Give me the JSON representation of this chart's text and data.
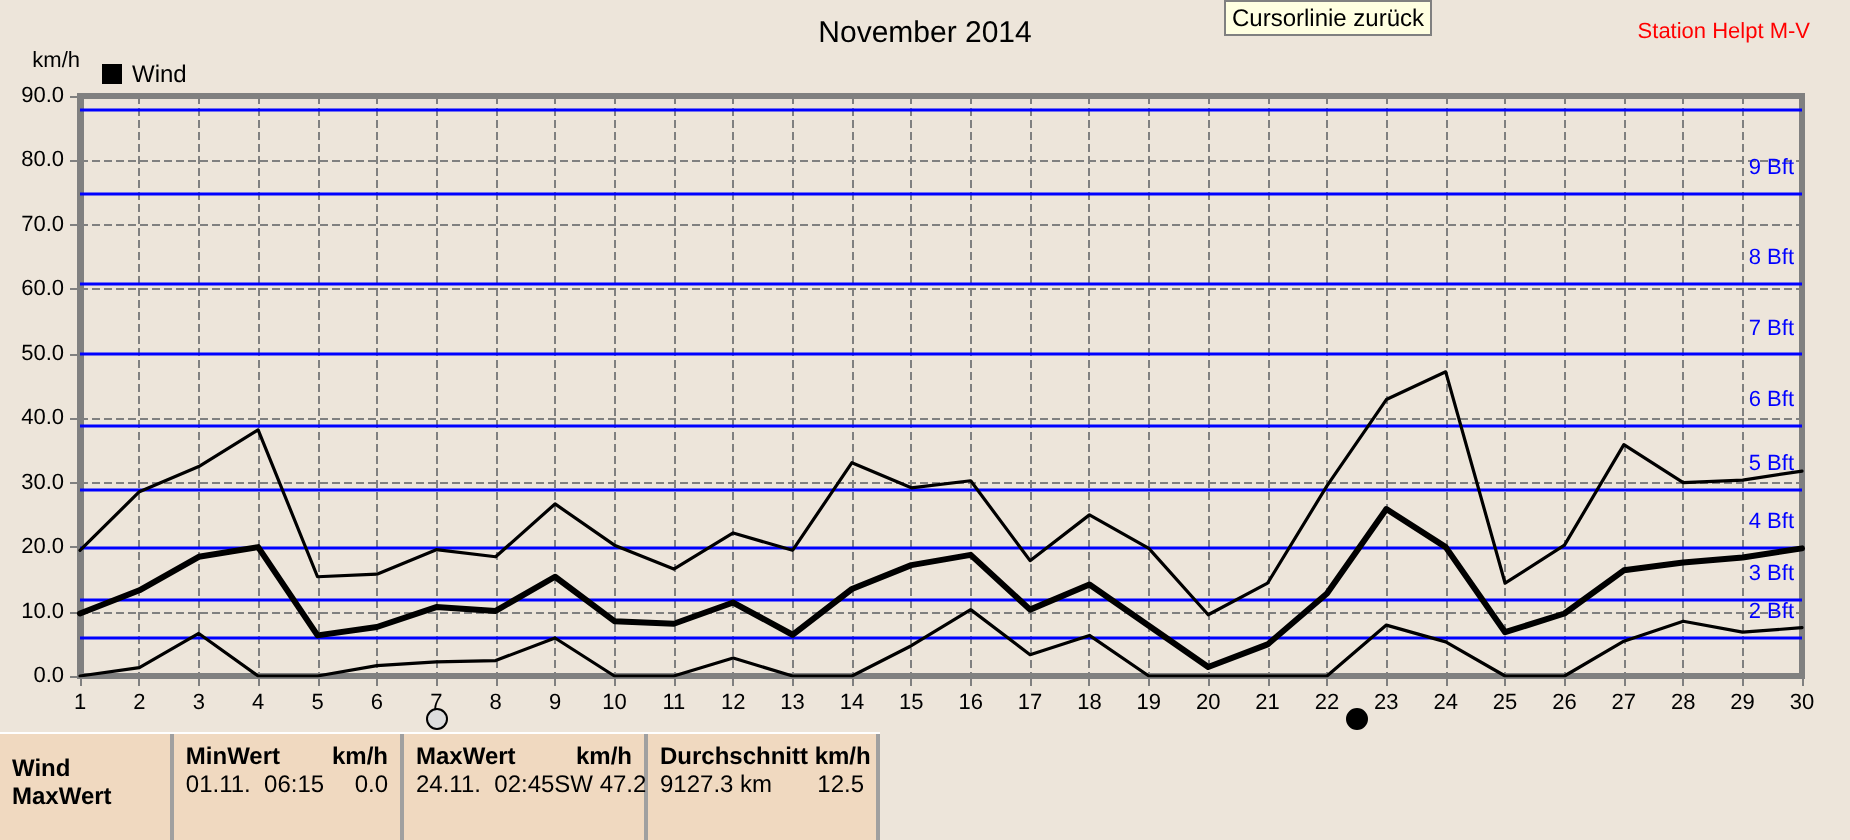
{
  "chart_data": {
    "type": "line",
    "title": "November 2014",
    "ylabel": "km/h",
    "legend": "top left",
    "grid": true,
    "marker": "none",
    "line_style": "solid",
    "x": [
      1,
      2,
      3,
      4,
      5,
      6,
      7,
      8,
      9,
      10,
      11,
      12,
      13,
      14,
      15,
      16,
      17,
      18,
      19,
      20,
      21,
      22,
      23,
      24,
      25,
      26,
      27,
      28,
      29,
      30
    ],
    "xlim": [
      1,
      30
    ],
    "xticks": [
      1,
      2,
      3,
      4,
      5,
      6,
      7,
      8,
      9,
      10,
      11,
      12,
      13,
      14,
      15,
      16,
      17,
      18,
      19,
      20,
      21,
      22,
      23,
      24,
      25,
      26,
      27,
      28,
      29,
      30
    ],
    "ylim": [
      0,
      90
    ],
    "yticks": [
      {
        "value": 0,
        "label": "0.0"
      },
      {
        "value": 10,
        "label": "10.0"
      },
      {
        "value": 20,
        "label": "20.0"
      },
      {
        "value": 30,
        "label": "30.0"
      },
      {
        "value": 40,
        "label": "40.0"
      },
      {
        "value": 50,
        "label": "50.0"
      },
      {
        "value": 60,
        "label": "60.0"
      },
      {
        "value": 70,
        "label": "70.0"
      },
      {
        "value": 80,
        "label": "80.0"
      },
      {
        "value": 90,
        "label": "90.0"
      }
    ],
    "series": [
      {
        "color": "#000000",
        "values": [
          19.5,
          28.6,
          32.5,
          38.2,
          15.4,
          15.8,
          19.6,
          18.5,
          26.7,
          20.3,
          16.6,
          22.2,
          19.5,
          33.1,
          29.2,
          30.3,
          17.9,
          25.0,
          19.8,
          9.5,
          14.4,
          29.5,
          42.9,
          47.2,
          14.4,
          20.3,
          35.9,
          30.0,
          30.4,
          31.8
        ]
      },
      {
        "name": "Wind",
        "color": "#000000",
        "values": [
          9.7,
          13.3,
          18.5,
          20.0,
          6.3,
          7.6,
          10.7,
          10.1,
          15.4,
          8.5,
          8.1,
          11.4,
          6.4,
          13.5,
          17.2,
          18.8,
          10.3,
          14.2,
          7.8,
          1.4,
          4.9,
          12.8,
          25.9,
          20.0,
          6.8,
          9.7,
          16.4,
          17.6,
          18.4,
          19.8
        ]
      },
      {
        "color": "#000000",
        "values": [
          0.0,
          1.3,
          6.6,
          0.0,
          0.0,
          1.6,
          2.2,
          2.4,
          5.9,
          0.0,
          0.0,
          2.8,
          0.0,
          0.0,
          4.7,
          10.3,
          3.3,
          6.3,
          0.0,
          0.0,
          0.0,
          0.0,
          7.9,
          5.3,
          0.0,
          0.0,
          5.4,
          8.5,
          6.8,
          7.5
        ]
      }
    ],
    "ref_lines": [
      {
        "axis": "y",
        "value": 6,
        "label": "2 Bft",
        "color": "#0000ff"
      },
      {
        "axis": "y",
        "value": 12,
        "label": "3 Bft",
        "color": "#0000ff"
      },
      {
        "axis": "y",
        "value": 20,
        "label": "4 Bft",
        "color": "#0000ff"
      },
      {
        "axis": "y",
        "value": 29,
        "label": "5 Bft",
        "color": "#0000ff"
      },
      {
        "axis": "y",
        "value": 39,
        "label": "6 Bft",
        "color": "#0000ff"
      },
      {
        "axis": "y",
        "value": 50,
        "label": "7 Bft",
        "color": "#0000ff"
      },
      {
        "axis": "y",
        "value": 61,
        "label": "8 Bft",
        "color": "#0000ff"
      },
      {
        "axis": "y",
        "value": 75,
        "label": "9 Bft",
        "color": "#0000ff"
      },
      {
        "axis": "y",
        "value": 88,
        "label": null,
        "color": "#0000ff"
      }
    ],
    "annotations": [
      "Station Helpt M-V",
      "Cursorlinie zurück",
      "Wind",
      "MaxWert",
      "MinWert",
      "km/h",
      "01.11.  06:15",
      "0.0",
      "MaxWert",
      "km/h",
      "24.11.  02:45SW 47.2",
      "Durchschnitt km/h",
      "9127.3 km",
      "12.5"
    ]
  }
}
